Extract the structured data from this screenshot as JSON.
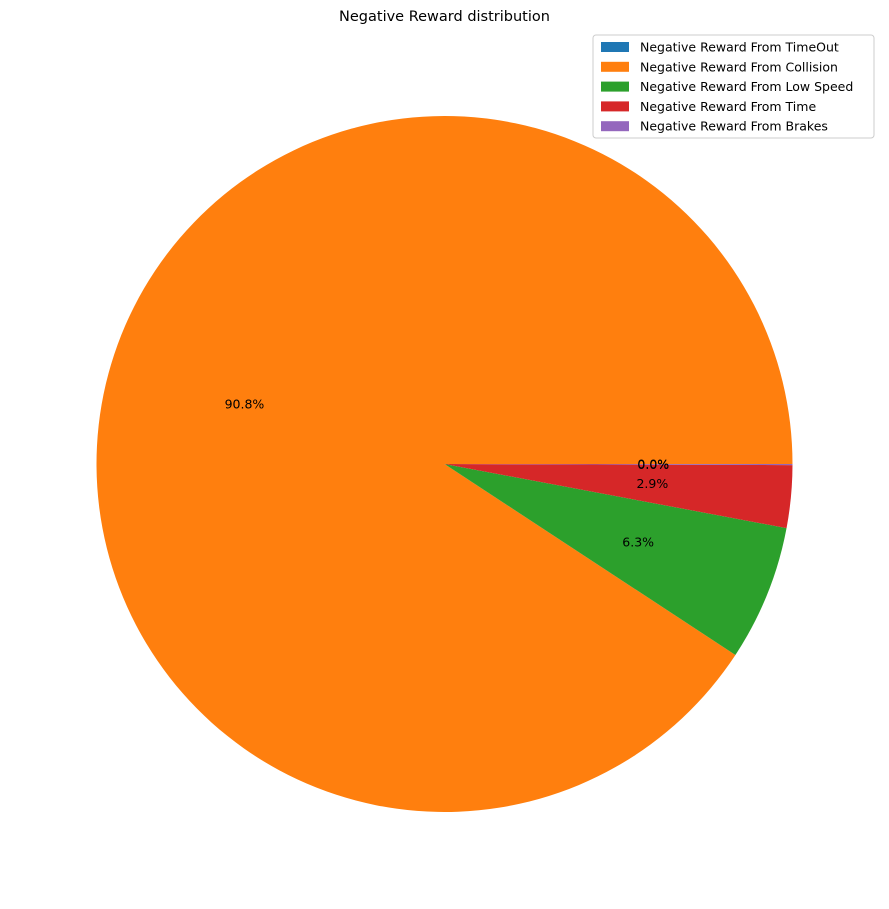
{
  "chart_data": {
    "type": "pie",
    "title": "Negative Reward distribution",
    "start_angle_deg": 0,
    "direction": "counterclockwise",
    "slices": [
      {
        "label": "Negative Reward From TimeOut",
        "percent": 0.0,
        "percent_label": "0.0%",
        "color": "#1f77b4"
      },
      {
        "label": "Negative Reward From Collision",
        "percent": 90.8,
        "percent_label": "90.8%",
        "color": "#ff7f0e"
      },
      {
        "label": "Negative Reward From Low Speed",
        "percent": 6.3,
        "percent_label": "6.3%",
        "color": "#2ca02c"
      },
      {
        "label": "Negative Reward From Time",
        "percent": 2.9,
        "percent_label": "2.9%",
        "color": "#d62728"
      },
      {
        "label": "Negative Reward From Brakes",
        "percent": 0.05,
        "percent_label": "0.0%",
        "color": "#9467bd"
      }
    ],
    "legend_position": "top-right"
  }
}
